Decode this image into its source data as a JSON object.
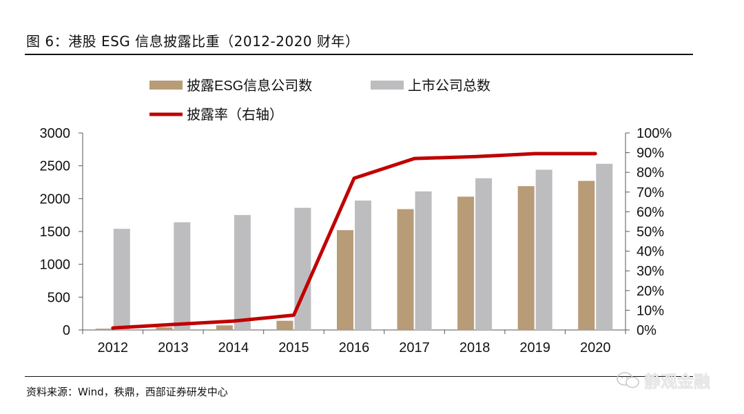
{
  "title": "图 6：港股 ESG 信息披露比重（2012-2020 财年）",
  "source": "资料来源：Wind，秩鼎，西部证券研发中心",
  "watermark": "静观金融",
  "colors": {
    "disclosed": "#b89b77",
    "listed": "#bdbdbf",
    "rate": "#c00000",
    "axis": "#555555"
  },
  "chart_data": {
    "type": "bar",
    "title": "",
    "categories": [
      "2012",
      "2013",
      "2014",
      "2015",
      "2016",
      "2017",
      "2018",
      "2019",
      "2020"
    ],
    "series": [
      {
        "name": "披露ESG信息公司数",
        "values": [
          20,
          40,
          70,
          140,
          1520,
          1840,
          2030,
          2190,
          2270
        ],
        "axis": "left",
        "kind": "bar"
      },
      {
        "name": "上市公司总数",
        "values": [
          1540,
          1640,
          1750,
          1860,
          1970,
          2110,
          2310,
          2440,
          2530
        ],
        "axis": "left",
        "kind": "bar"
      },
      {
        "name": "披露率（右轴）",
        "values": [
          0.01,
          0.028,
          0.045,
          0.075,
          0.77,
          0.87,
          0.88,
          0.895,
          0.895
        ],
        "axis": "right",
        "kind": "line"
      }
    ],
    "ylim": [
      0,
      3000
    ],
    "yticks": [
      "0",
      "500",
      "1000",
      "1500",
      "2000",
      "2500",
      "3000"
    ],
    "ylim_right": [
      0,
      1
    ],
    "yticks_right": [
      "0%",
      "10%",
      "20%",
      "30%",
      "40%",
      "50%",
      "60%",
      "70%",
      "80%",
      "90%",
      "100%"
    ],
    "legend": [
      "披露ESG信息公司数",
      "上市公司总数",
      "披露率（右轴）"
    ],
    "grid": false
  }
}
